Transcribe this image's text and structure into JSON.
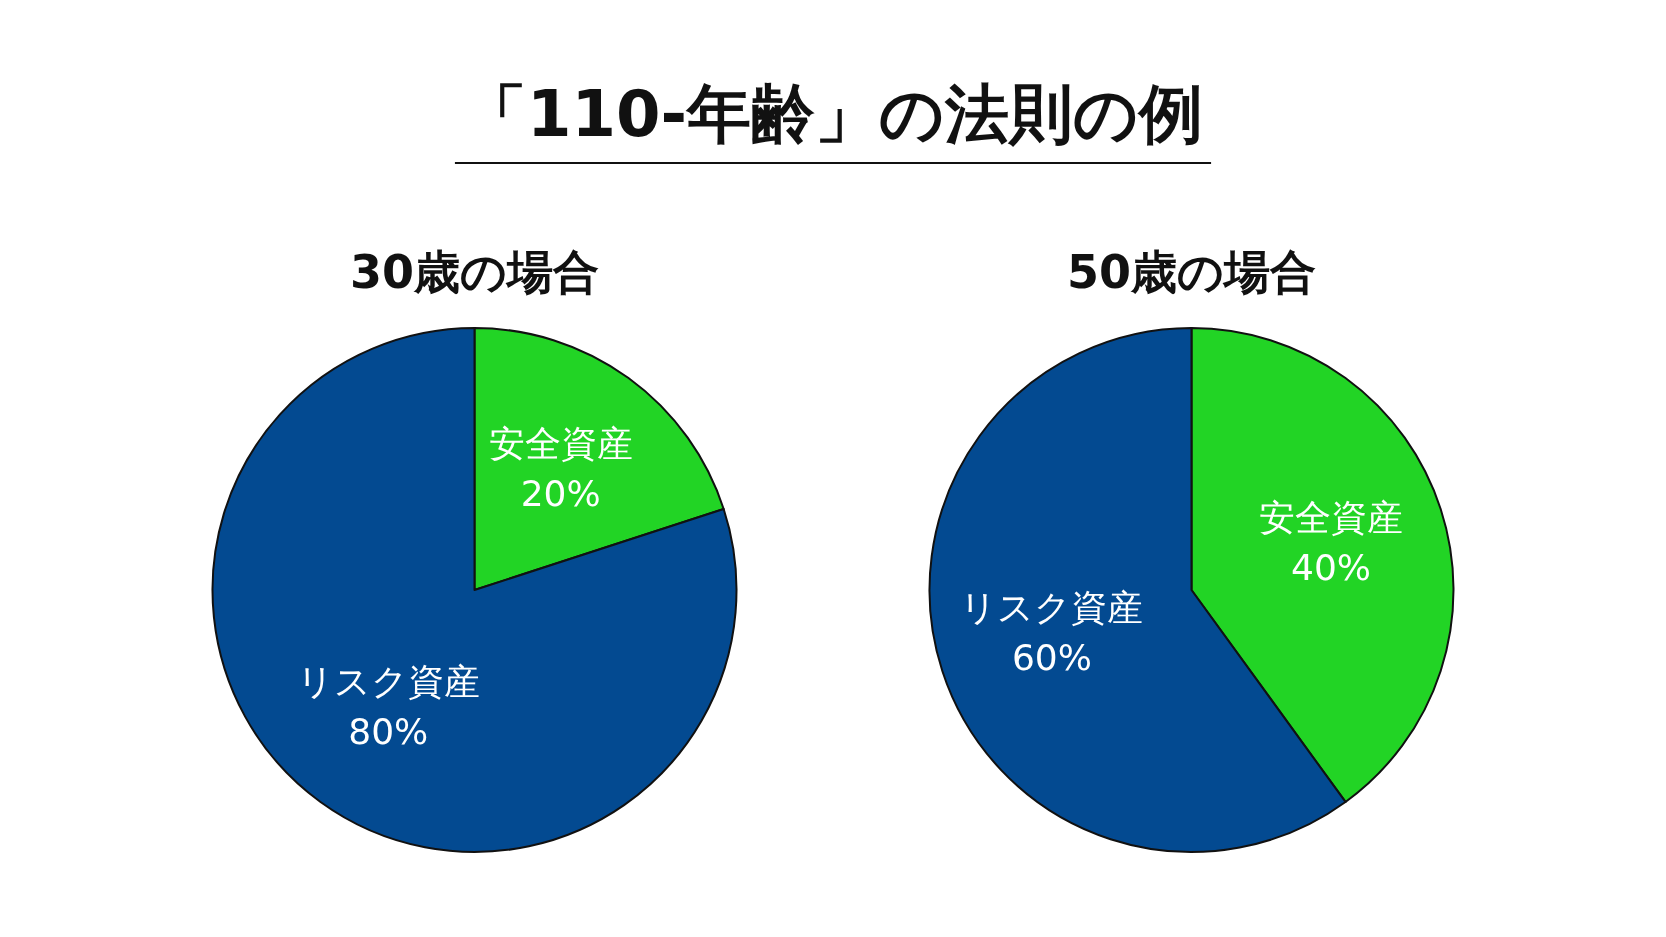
{
  "chart_data": [
    {
      "type": "pie",
      "title": "30歳の場合",
      "annotations": [
        "「110-年齢」の法則の例"
      ],
      "categories": [
        "安全資産",
        "リスク資産"
      ],
      "values": [
        20,
        80
      ],
      "value_labels": [
        "20%",
        "80%"
      ],
      "colors": [
        "#22d425",
        "#034a91"
      ]
    },
    {
      "type": "pie",
      "title": "50歳の場合",
      "categories": [
        "安全資産",
        "リスク資産"
      ],
      "values": [
        40,
        60
      ],
      "value_labels": [
        "40%",
        "60%"
      ],
      "colors": [
        "#22d425",
        "#034a91"
      ]
    }
  ]
}
